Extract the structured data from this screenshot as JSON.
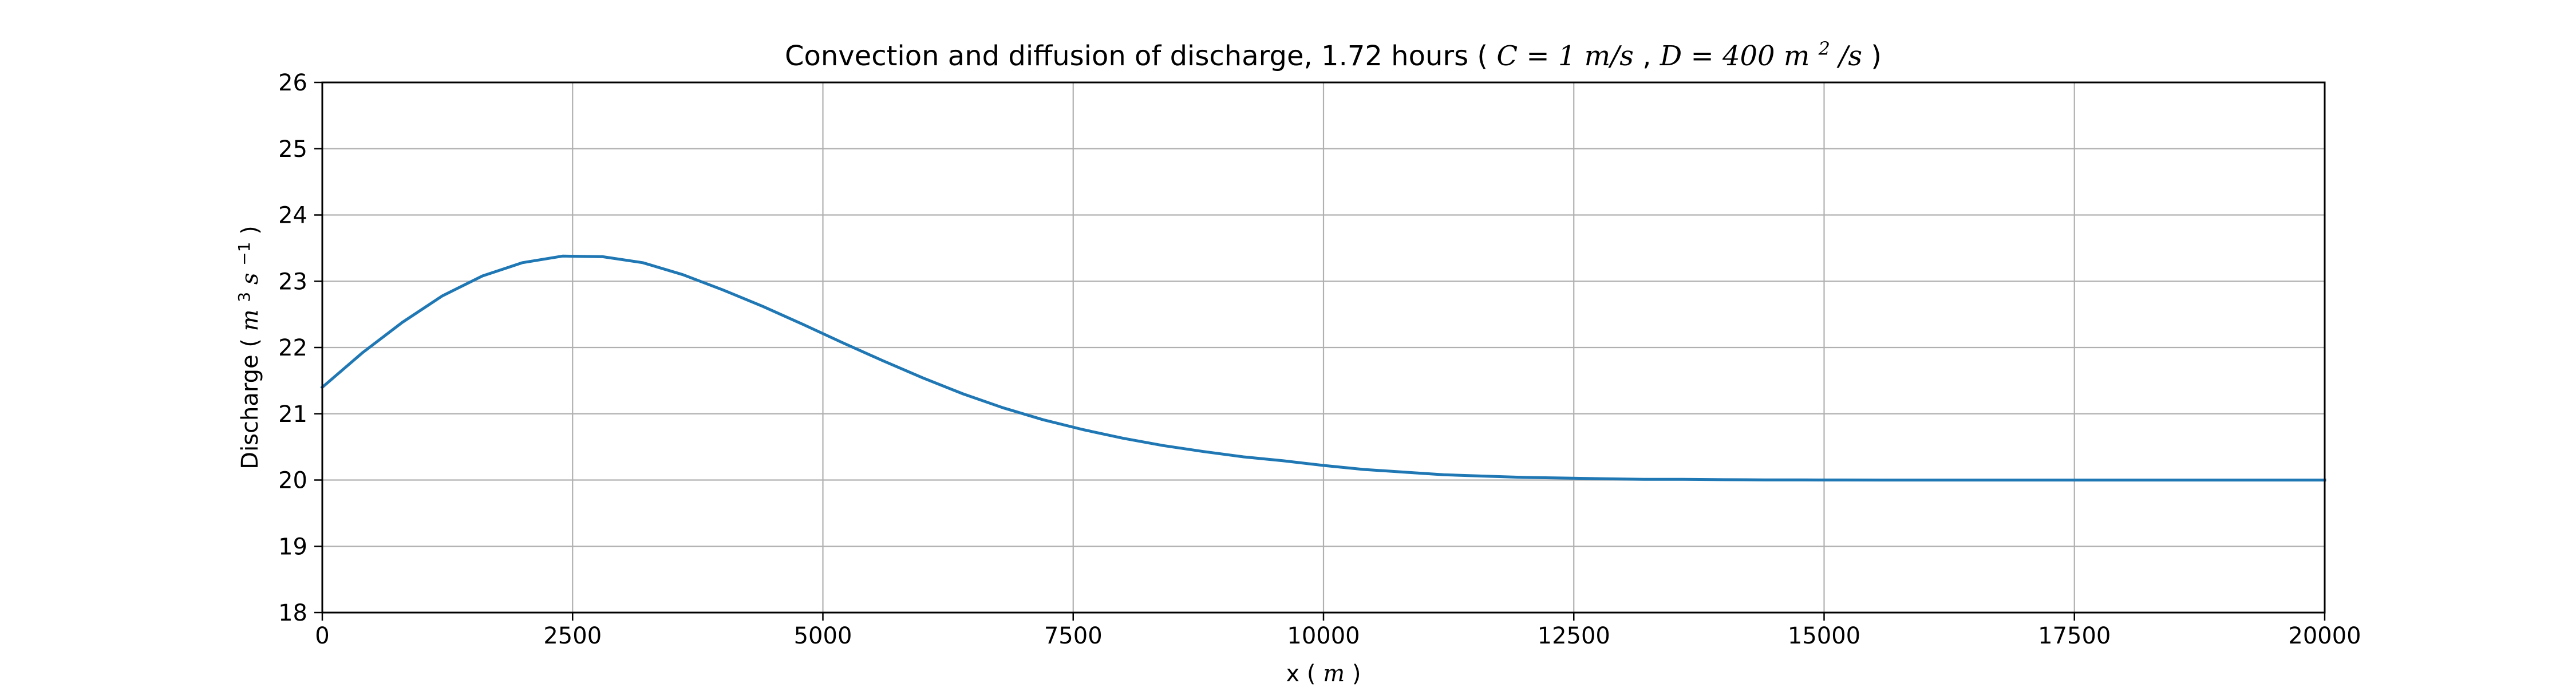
{
  "chart_data": {
    "type": "line",
    "title": {
      "prefix": "Convection and diffusion of discharge, 1.72 hours (",
      "c_eq": "C = 1 m/s",
      "separator": ", ",
      "d_eq": "D = 400 m",
      "d_sup": "2",
      "d_unit": "/s",
      "suffix": ")"
    },
    "xlabel": {
      "prefix": "x (",
      "unit": "m",
      "suffix": ")"
    },
    "ylabel": {
      "prefix": "Discharge (",
      "unit_m": "m",
      "unit_m_sup": "3",
      "unit_s": "s",
      "unit_s_sup": "−1",
      "suffix": ")"
    },
    "xlim": [
      0,
      20000
    ],
    "ylim": [
      18,
      26
    ],
    "xticks": [
      0,
      2500,
      5000,
      7500,
      10000,
      12500,
      15000,
      17500,
      20000
    ],
    "xtick_labels": [
      "0",
      "2500",
      "5000",
      "7500",
      "10000",
      "12500",
      "15000",
      "17500",
      "20000"
    ],
    "yticks": [
      18,
      19,
      20,
      21,
      22,
      23,
      24,
      25,
      26
    ],
    "ytick_labels": [
      "18",
      "19",
      "20",
      "21",
      "22",
      "23",
      "24",
      "25",
      "26"
    ],
    "grid": true,
    "line_color": "#1f77b4",
    "grid_color": "#b0b0b0",
    "series": [
      {
        "x": [
          0,
          400,
          800,
          1200,
          1600,
          2000,
          2400,
          2800,
          3200,
          3600,
          4000,
          4400,
          4800,
          5200,
          5600,
          6000,
          6400,
          6800,
          7200,
          7600,
          8000,
          8400,
          8800,
          9200,
          9600,
          10000,
          10400,
          10800,
          11200,
          11600,
          12000,
          12400,
          12800,
          13200,
          13600,
          14000,
          14400,
          14800,
          15200,
          15600,
          16000,
          16400,
          16800,
          17200,
          17600,
          18000,
          18400,
          18800,
          19200,
          19600,
          20000
        ],
        "y": [
          21.4,
          21.92,
          22.38,
          22.78,
          23.08,
          23.28,
          23.38,
          23.37,
          23.28,
          23.1,
          22.87,
          22.62,
          22.35,
          22.07,
          21.8,
          21.54,
          21.3,
          21.09,
          20.91,
          20.76,
          20.63,
          20.52,
          20.43,
          20.35,
          20.29,
          20.22,
          20.16,
          20.12,
          20.08,
          20.06,
          20.04,
          20.03,
          20.02,
          20.01,
          20.01,
          20.005,
          20.003,
          20.002,
          20.001,
          20.0,
          20.0,
          20.0,
          20.0,
          20.0,
          20.0,
          20.0,
          20.0,
          20.0,
          20.0,
          20.0,
          20.0
        ]
      }
    ]
  }
}
